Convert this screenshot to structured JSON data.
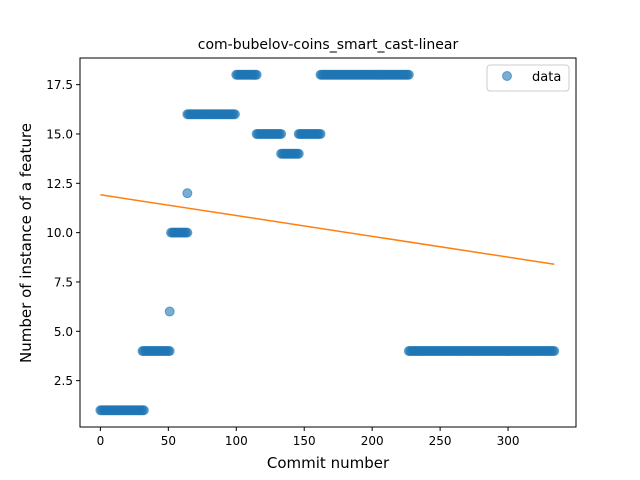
{
  "chart_data": {
    "type": "scatter",
    "title": "com-bubelov-coins_smart_cast-linear",
    "xlabel": "Commit number",
    "ylabel": "Number of instance of a feature",
    "xlim": [
      -15,
      350
    ],
    "ylim": [
      0.15,
      18.85
    ],
    "xticks": [
      0,
      50,
      100,
      150,
      200,
      250,
      300
    ],
    "yticks": [
      2.5,
      5.0,
      7.5,
      10.0,
      12.5,
      15.0,
      17.5
    ],
    "xtick_labels": [
      "0",
      "50",
      "100",
      "150",
      "200",
      "250",
      "300"
    ],
    "ytick_labels": [
      "2.5",
      "5.0",
      "7.5",
      "10.0",
      "12.5",
      "15.0",
      "17.5"
    ],
    "grid": false,
    "legend": {
      "placement": "top-right",
      "entries": [
        "data"
      ]
    },
    "series": [
      {
        "name": "data",
        "kind": "scatter",
        "color": "#1f77b4",
        "segments": [
          {
            "x_start": 0,
            "x_end": 32,
            "y": 1
          },
          {
            "x_start": 31,
            "x_end": 51,
            "y": 4
          },
          {
            "x_start": 51,
            "x_end": 51,
            "y": 6
          },
          {
            "x_start": 52,
            "x_end": 64,
            "y": 10
          },
          {
            "x_start": 64,
            "x_end": 64,
            "y": 12
          },
          {
            "x_start": 64,
            "x_end": 99,
            "y": 16
          },
          {
            "x_start": 100,
            "x_end": 115,
            "y": 18
          },
          {
            "x_start": 115,
            "x_end": 133,
            "y": 15
          },
          {
            "x_start": 133,
            "x_end": 146,
            "y": 14
          },
          {
            "x_start": 146,
            "x_end": 162,
            "y": 15
          },
          {
            "x_start": 162,
            "x_end": 227,
            "y": 18
          },
          {
            "x_start": 227,
            "x_end": 334,
            "y": 4
          }
        ]
      },
      {
        "kind": "line",
        "color": "#ff7f0e",
        "x": [
          0,
          334
        ],
        "y": [
          11.92,
          8.4
        ]
      }
    ]
  }
}
